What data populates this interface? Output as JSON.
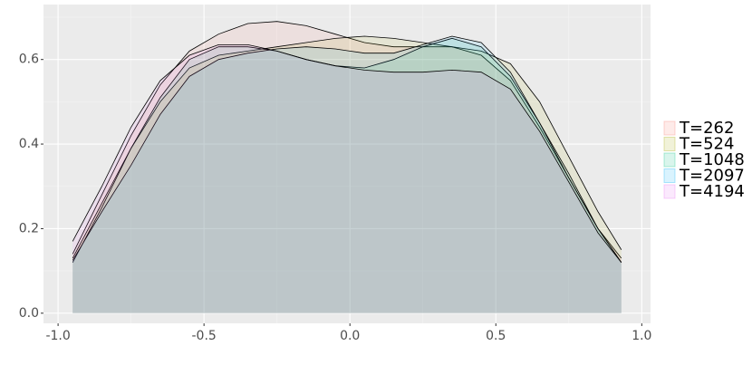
{
  "chart_data": {
    "type": "area",
    "x": [
      -0.95,
      -0.85,
      -0.75,
      -0.65,
      -0.55,
      -0.45,
      -0.35,
      -0.25,
      -0.15,
      -0.05,
      0.05,
      0.15,
      0.25,
      0.35,
      0.45,
      0.55,
      0.65,
      0.75,
      0.85,
      0.93
    ],
    "series": [
      {
        "name": "T=262",
        "color": "#F8766D",
        "values": [
          0.14,
          0.28,
          0.42,
          0.54,
          0.62,
          0.66,
          0.685,
          0.69,
          0.68,
          0.66,
          0.64,
          0.63,
          0.63,
          0.63,
          0.61,
          0.55,
          0.44,
          0.32,
          0.2,
          0.13
        ]
      },
      {
        "name": "T=524",
        "color": "#A3A500",
        "values": [
          0.13,
          0.26,
          0.39,
          0.5,
          0.58,
          0.61,
          0.62,
          0.63,
          0.64,
          0.65,
          0.655,
          0.65,
          0.64,
          0.63,
          0.62,
          0.59,
          0.5,
          0.37,
          0.24,
          0.15
        ]
      },
      {
        "name": "T=1048",
        "color": "#00BF7D",
        "values": [
          0.12,
          0.25,
          0.39,
          0.51,
          0.6,
          0.63,
          0.63,
          0.62,
          0.6,
          0.585,
          0.58,
          0.6,
          0.63,
          0.65,
          0.63,
          0.56,
          0.45,
          0.33,
          0.2,
          0.12
        ]
      },
      {
        "name": "T=2097",
        "color": "#00B0F6",
        "values": [
          0.125,
          0.24,
          0.35,
          0.47,
          0.56,
          0.6,
          0.615,
          0.625,
          0.63,
          0.625,
          0.615,
          0.615,
          0.635,
          0.655,
          0.64,
          0.57,
          0.45,
          0.32,
          0.2,
          0.12
        ]
      },
      {
        "name": "T=4194",
        "color": "#E76BF3",
        "values": [
          0.17,
          0.3,
          0.44,
          0.55,
          0.61,
          0.635,
          0.635,
          0.62,
          0.6,
          0.585,
          0.575,
          0.57,
          0.57,
          0.575,
          0.57,
          0.53,
          0.43,
          0.31,
          0.19,
          0.12
        ]
      }
    ],
    "xlim": [
      -1.05,
      1.03
    ],
    "ylim": [
      -0.024,
      0.73
    ],
    "xticks": [
      {
        "value": -1.0,
        "label": "-1.0"
      },
      -0.5,
      {
        "value": 0,
        "label": "0.0"
      },
      0.5,
      {
        "value": 1.0,
        "label": "1.0"
      }
    ],
    "yticks": [
      {
        "value": 0,
        "label": "0.0"
      },
      0.2,
      0.4,
      0.6
    ],
    "grid": true,
    "legend": "right"
  }
}
